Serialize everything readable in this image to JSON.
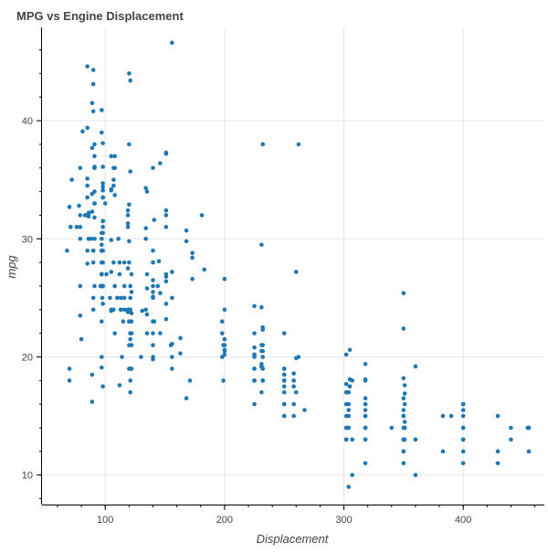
{
  "chart_data": {
    "type": "scatter",
    "title": "MPG vs Engine Displacement",
    "xlabel": "Displacement",
    "ylabel": "mpg",
    "xlim": [
      47,
      468
    ],
    "ylim": [
      7.5,
      47.9
    ],
    "x_ticks": [
      100,
      200,
      300,
      400
    ],
    "y_ticks": [
      10,
      20,
      30,
      40
    ],
    "grid": true,
    "color": "#1f77b4",
    "points": [
      [
        307,
        18
      ],
      [
        350,
        15
      ],
      [
        318,
        18
      ],
      [
        304,
        16
      ],
      [
        302,
        17
      ],
      [
        429,
        15
      ],
      [
        454,
        14
      ],
      [
        440,
        14
      ],
      [
        455,
        14
      ],
      [
        390,
        15
      ],
      [
        383,
        15
      ],
      [
        340,
        14
      ],
      [
        400,
        15
      ],
      [
        455,
        14
      ],
      [
        113,
        24
      ],
      [
        198,
        22
      ],
      [
        199,
        18
      ],
      [
        200,
        21
      ],
      [
        97,
        27
      ],
      [
        97,
        26
      ],
      [
        110,
        25
      ],
      [
        107,
        24
      ],
      [
        104,
        25
      ],
      [
        121,
        26
      ],
      [
        199,
        21
      ],
      [
        360,
        10
      ],
      [
        307,
        10
      ],
      [
        318,
        11
      ],
      [
        304,
        9
      ],
      [
        97,
        27
      ],
      [
        140,
        28
      ],
      [
        113,
        25
      ],
      [
        232,
        19
      ],
      [
        225,
        16
      ],
      [
        250,
        17
      ],
      [
        250,
        19
      ],
      [
        232,
        18
      ],
      [
        350,
        14
      ],
      [
        400,
        14
      ],
      [
        351,
        14
      ],
      [
        318,
        14
      ],
      [
        383,
        12
      ],
      [
        400,
        13
      ],
      [
        400,
        13
      ],
      [
        258,
        18
      ],
      [
        140,
        22
      ],
      [
        250,
        19
      ],
      [
        250,
        18
      ],
      [
        122,
        23
      ],
      [
        116,
        28
      ],
      [
        79,
        30
      ],
      [
        88,
        30
      ],
      [
        71,
        31
      ],
      [
        72,
        35
      ],
      [
        97,
        27
      ],
      [
        91,
        26
      ],
      [
        113,
        24
      ],
      [
        97.5,
        25
      ],
      [
        97,
        23
      ],
      [
        140,
        20
      ],
      [
        122,
        21
      ],
      [
        350,
        13
      ],
      [
        400,
        14
      ],
      [
        318,
        15
      ],
      [
        351,
        14
      ],
      [
        304,
        17
      ],
      [
        429,
        11
      ],
      [
        350,
        13
      ],
      [
        350,
        12
      ],
      [
        400,
        13
      ],
      [
        70,
        19
      ],
      [
        304,
        15
      ],
      [
        307,
        13
      ],
      [
        302,
        13
      ],
      [
        318,
        14
      ],
      [
        121,
        18
      ],
      [
        121,
        22
      ],
      [
        120,
        21
      ],
      [
        96,
        26
      ],
      [
        122,
        22
      ],
      [
        97,
        28
      ],
      [
        120,
        23
      ],
      [
        98,
        28
      ],
      [
        97,
        27
      ],
      [
        350,
        13
      ],
      [
        304,
        14
      ],
      [
        350,
        13
      ],
      [
        302,
        14
      ],
      [
        318,
        15
      ],
      [
        429,
        12
      ],
      [
        400,
        13
      ],
      [
        351,
        13
      ],
      [
        318,
        14
      ],
      [
        440,
        13
      ],
      [
        455,
        12
      ],
      [
        360,
        13
      ],
      [
        225,
        18
      ],
      [
        250,
        16
      ],
      [
        232,
        18
      ],
      [
        250,
        18
      ],
      [
        198,
        23
      ],
      [
        97,
        26
      ],
      [
        400,
        11
      ],
      [
        400,
        12
      ],
      [
        360,
        13
      ],
      [
        350,
        12
      ],
      [
        232,
        18
      ],
      [
        97,
        20
      ],
      [
        140,
        21
      ],
      [
        108,
        22
      ],
      [
        70,
        18
      ],
      [
        122,
        19
      ],
      [
        155,
        21
      ],
      [
        98,
        26
      ],
      [
        350,
        15
      ],
      [
        400,
        16
      ],
      [
        68,
        29
      ],
      [
        116,
        24
      ],
      [
        114,
        20
      ],
      [
        121,
        19
      ],
      [
        318,
        15
      ],
      [
        121,
        24
      ],
      [
        156,
        20
      ],
      [
        350,
        11
      ],
      [
        198,
        20
      ],
      [
        232,
        21
      ],
      [
        250,
        19
      ],
      [
        79,
        32
      ],
      [
        122,
        27
      ],
      [
        71,
        31
      ],
      [
        140,
        26
      ],
      [
        250,
        16
      ],
      [
        258,
        16
      ],
      [
        225,
        18
      ],
      [
        302,
        16
      ],
      [
        350,
        13
      ],
      [
        318,
        14
      ],
      [
        302,
        14
      ],
      [
        304,
        14
      ],
      [
        98,
        29
      ],
      [
        79,
        26
      ],
      [
        97,
        26
      ],
      [
        76,
        31
      ],
      [
        83,
        32
      ],
      [
        90,
        28
      ],
      [
        90,
        24
      ],
      [
        116,
        26
      ],
      [
        120,
        24
      ],
      [
        108,
        26
      ],
      [
        79,
        31
      ],
      [
        225,
        19
      ],
      [
        250,
        18
      ],
      [
        250,
        15
      ],
      [
        250,
        15
      ],
      [
        400,
        16
      ],
      [
        350,
        15
      ],
      [
        318,
        16
      ],
      [
        351,
        14
      ],
      [
        231,
        17
      ],
      [
        250,
        16
      ],
      [
        258,
        15
      ],
      [
        225,
        18
      ],
      [
        231,
        21
      ],
      [
        262,
        20
      ],
      [
        302,
        13
      ],
      [
        97,
        29
      ],
      [
        140,
        23
      ],
      [
        232,
        20
      ],
      [
        140,
        23
      ],
      [
        134,
        24
      ],
      [
        90,
        25
      ],
      [
        119,
        24
      ],
      [
        171,
        18
      ],
      [
        90,
        29
      ],
      [
        232,
        19
      ],
      [
        115,
        23
      ],
      [
        120,
        23
      ],
      [
        121,
        22
      ],
      [
        121,
        25
      ],
      [
        91,
        33
      ],
      [
        107,
        28
      ],
      [
        116,
        25
      ],
      [
        140,
        25
      ],
      [
        98,
        26
      ],
      [
        101,
        27
      ],
      [
        305,
        17.5
      ],
      [
        318,
        16
      ],
      [
        304,
        15.5
      ],
      [
        351,
        14.5
      ],
      [
        225,
        22
      ],
      [
        250,
        22
      ],
      [
        200,
        24
      ],
      [
        232,
        22.5
      ],
      [
        85,
        29
      ],
      [
        98,
        24.5
      ],
      [
        90,
        29
      ],
      [
        91,
        33
      ],
      [
        225,
        20
      ],
      [
        250,
        18
      ],
      [
        250,
        18.5
      ],
      [
        258,
        17.5
      ],
      [
        97,
        29.5
      ],
      [
        85,
        32
      ],
      [
        97,
        28
      ],
      [
        140,
        26.5
      ],
      [
        130,
        20
      ],
      [
        318,
        13
      ],
      [
        120,
        19
      ],
      [
        156,
        19
      ],
      [
        168,
        16.5
      ],
      [
        350,
        16.5
      ],
      [
        350,
        13
      ],
      [
        302,
        13
      ],
      [
        318,
        13
      ],
      [
        98,
        31.5
      ],
      [
        111,
        30
      ],
      [
        79,
        36
      ],
      [
        122,
        25.5
      ],
      [
        85,
        33.5
      ],
      [
        305,
        17.5
      ],
      [
        260,
        17
      ],
      [
        318,
        15.5
      ],
      [
        302,
        15
      ],
      [
        250,
        17.5
      ],
      [
        231,
        20.5
      ],
      [
        225,
        19
      ],
      [
        250,
        18.5
      ],
      [
        400,
        16
      ],
      [
        350,
        15.5
      ],
      [
        400,
        15.5
      ],
      [
        351,
        16
      ],
      [
        97,
        29
      ],
      [
        151,
        24.5
      ],
      [
        97,
        26
      ],
      [
        140,
        25.5
      ],
      [
        98,
        30.5
      ],
      [
        98,
        33.5
      ],
      [
        97,
        30
      ],
      [
        97,
        30.5
      ],
      [
        146,
        22
      ],
      [
        121,
        21.5
      ],
      [
        80,
        21.5
      ],
      [
        90,
        43.1
      ],
      [
        98,
        36.1
      ],
      [
        78,
        32.8
      ],
      [
        85,
        39.4
      ],
      [
        91,
        36.1
      ],
      [
        260,
        19.9
      ],
      [
        318,
        19.4
      ],
      [
        302,
        20.2
      ],
      [
        231,
        19.2
      ],
      [
        200,
        20.5
      ],
      [
        200,
        20.2
      ],
      [
        140,
        25.1
      ],
      [
        232,
        20.5
      ],
      [
        231,
        19.4
      ],
      [
        200,
        20.6
      ],
      [
        225,
        20.8
      ],
      [
        258,
        18.6
      ],
      [
        305,
        18.1
      ],
      [
        231,
        19.2
      ],
      [
        302,
        17.7
      ],
      [
        318,
        18.1
      ],
      [
        98,
        17.5
      ],
      [
        134,
        30
      ],
      [
        119,
        27.5
      ],
      [
        105,
        27.2
      ],
      [
        134,
        30.9
      ],
      [
        156,
        21.1
      ],
      [
        151,
        23.2
      ],
      [
        119,
        23.8
      ],
      [
        131,
        23.9
      ],
      [
        163,
        20.3
      ],
      [
        121,
        17
      ],
      [
        163,
        21.6
      ],
      [
        89,
        16.2
      ],
      [
        98,
        31.5
      ],
      [
        231,
        29.5
      ],
      [
        200,
        21.5
      ],
      [
        140,
        19.8
      ],
      [
        232,
        22.3
      ],
      [
        225,
        20.2
      ],
      [
        305,
        20.6
      ],
      [
        302,
        17
      ],
      [
        351,
        17.6
      ],
      [
        318,
        16.5
      ],
      [
        350,
        18.2
      ],
      [
        351,
        16.9
      ],
      [
        267,
        15.5
      ],
      [
        360,
        19.2
      ],
      [
        89,
        18.5
      ],
      [
        86,
        31.9
      ],
      [
        98,
        34.1
      ],
      [
        121,
        35.7
      ],
      [
        183,
        27.4
      ],
      [
        350,
        25.4
      ],
      [
        141,
        23
      ],
      [
        260,
        27.2
      ],
      [
        105,
        23.9
      ],
      [
        105,
        34.2
      ],
      [
        85,
        34.5
      ],
      [
        91,
        31.8
      ],
      [
        151,
        37.3
      ],
      [
        173,
        28.4
      ],
      [
        173,
        28.8
      ],
      [
        151,
        26.8
      ],
      [
        98,
        33.5
      ],
      [
        89,
        41.5
      ],
      [
        98,
        38.1
      ],
      [
        86,
        32.1
      ],
      [
        151,
        37.2
      ],
      [
        140,
        28
      ],
      [
        151,
        26.4
      ],
      [
        225,
        24.3
      ],
      [
        97,
        19.1
      ],
      [
        134,
        34.3
      ],
      [
        120,
        29.8
      ],
      [
        119,
        31.3
      ],
      [
        108,
        37
      ],
      [
        86,
        32.2
      ],
      [
        156,
        46.6
      ],
      [
        85,
        27.9
      ],
      [
        90,
        40.8
      ],
      [
        90,
        44.3
      ],
      [
        121,
        43.4
      ],
      [
        146,
        36.4
      ],
      [
        91,
        30
      ],
      [
        85,
        44.6
      ],
      [
        97,
        40.9
      ],
      [
        89,
        33.8
      ],
      [
        168,
        29.8
      ],
      [
        70,
        32.7
      ],
      [
        122,
        23.7
      ],
      [
        107,
        35
      ],
      [
        135,
        23.6
      ],
      [
        151,
        32.4
      ],
      [
        156,
        27.2
      ],
      [
        173,
        26.6
      ],
      [
        135,
        25.8
      ],
      [
        79,
        23.5
      ],
      [
        86,
        30
      ],
      [
        81,
        39.1
      ],
      [
        97,
        39
      ],
      [
        85,
        35.1
      ],
      [
        89,
        32.3
      ],
      [
        91,
        37
      ],
      [
        89,
        37.7
      ],
      [
        105,
        34.1
      ],
      [
        98,
        34.7
      ],
      [
        98,
        34.4
      ],
      [
        105,
        29.9
      ],
      [
        100,
        33
      ],
      [
        107,
        34.5
      ],
      [
        108,
        33.7
      ],
      [
        119,
        32.4
      ],
      [
        120,
        32.9
      ],
      [
        141,
        31.6
      ],
      [
        145,
        28.1
      ],
      [
        168,
        30.7
      ],
      [
        146,
        25.4
      ],
      [
        231,
        24.2
      ],
      [
        350,
        22.4
      ],
      [
        200,
        26.6
      ],
      [
        225,
        20.2
      ],
      [
        112,
        17.6
      ],
      [
        112,
        28
      ],
      [
        112,
        27
      ],
      [
        135,
        34
      ],
      [
        151,
        31
      ],
      [
        140,
        29
      ],
      [
        151,
        27
      ],
      [
        105,
        24
      ],
      [
        91,
        36
      ],
      [
        105,
        37
      ],
      [
        98,
        31
      ],
      [
        120,
        38
      ],
      [
        107,
        36
      ],
      [
        108,
        36
      ],
      [
        91,
        36
      ],
      [
        91,
        34
      ],
      [
        91,
        38
      ],
      [
        181,
        32
      ],
      [
        262,
        38
      ],
      [
        156,
        25
      ],
      [
        232,
        38
      ],
      [
        144,
        26
      ],
      [
        135,
        22
      ],
      [
        151,
        32
      ],
      [
        140,
        36
      ],
      [
        97,
        27
      ],
      [
        135,
        27
      ],
      [
        120,
        44
      ],
      [
        119,
        32
      ],
      [
        120,
        28
      ],
      [
        119,
        31
      ]
    ]
  }
}
